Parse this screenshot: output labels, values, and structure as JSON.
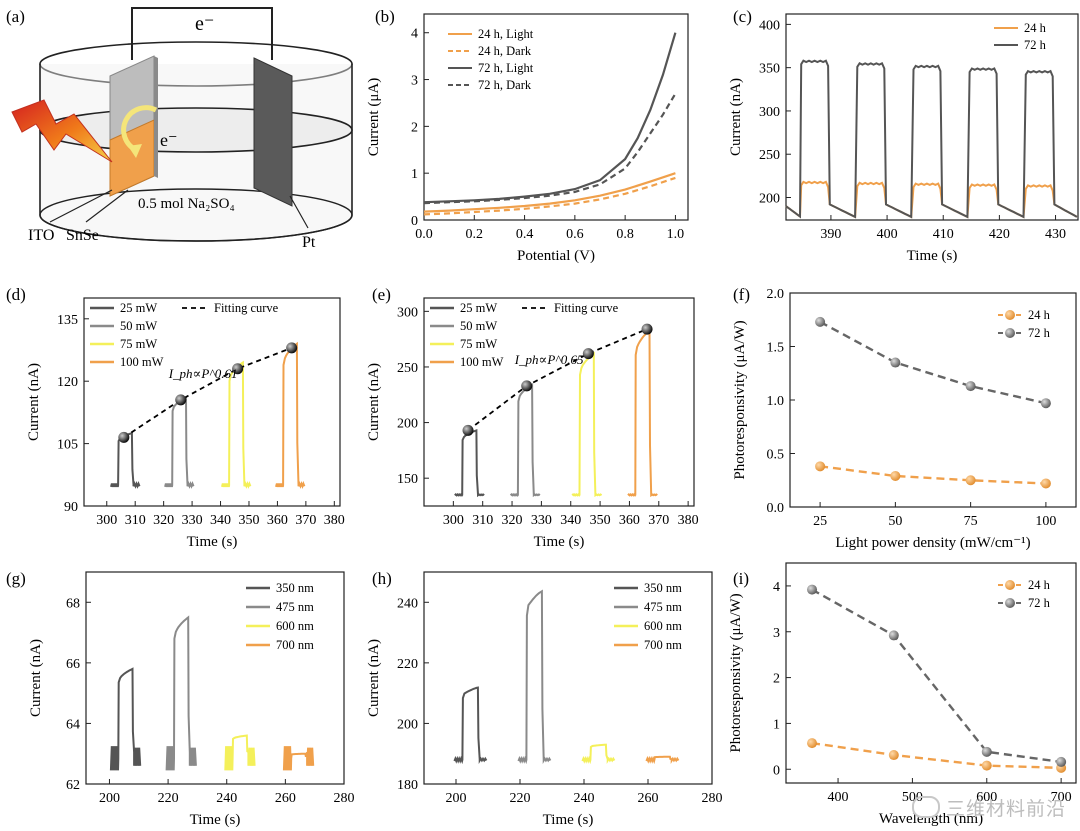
{
  "watermark": "三维材料前沿",
  "colors": {
    "orange": "#F0A04B",
    "dark": "#555555",
    "gray": "#8a8a8a",
    "yellow": "#F4F05A",
    "axis": "#222222"
  },
  "schematic": {
    "label": "(a)",
    "electron_top": "e⁻",
    "electron_mid": "e⁻",
    "electrolyte": "0.5 mol Na₂SO₄",
    "ito": "ITO",
    "snse": "SnSe",
    "pt": "Pt"
  },
  "chart_data": [
    {
      "id": "b",
      "label": "(b)",
      "type": "line",
      "xlabel": "Potential (V)",
      "ylabel": "Current (μA)",
      "xlim": [
        0,
        1.05
      ],
      "ylim": [
        0,
        4.4
      ],
      "xticks": [
        0.0,
        0.2,
        0.4,
        0.6,
        0.8,
        1.0
      ],
      "yticks": [
        0,
        1,
        2,
        3,
        4
      ],
      "xtick_labels": [
        "0.0",
        "0.2",
        "0.4",
        "0.6",
        "0.8",
        "1.0"
      ],
      "ytick_labels": [
        "0",
        "1",
        "2",
        "3",
        "4"
      ],
      "legend_position": "top-left",
      "series": [
        {
          "name": "24 h, Light",
          "color": "#F0A04B",
          "dash": false,
          "x": [
            0,
            0.1,
            0.2,
            0.3,
            0.4,
            0.5,
            0.6,
            0.7,
            0.8,
            0.9,
            1.0
          ],
          "y": [
            0.18,
            0.2,
            0.23,
            0.26,
            0.3,
            0.35,
            0.42,
            0.52,
            0.65,
            0.82,
            1.0
          ]
        },
        {
          "name": "24 h, Dark",
          "color": "#F0A04B",
          "dash": true,
          "x": [
            0,
            0.1,
            0.2,
            0.3,
            0.4,
            0.5,
            0.6,
            0.7,
            0.8,
            0.9,
            1.0
          ],
          "y": [
            0.12,
            0.14,
            0.17,
            0.2,
            0.24,
            0.29,
            0.35,
            0.44,
            0.56,
            0.72,
            0.9
          ]
        },
        {
          "name": "72 h, Light",
          "color": "#555555",
          "dash": false,
          "x": [
            0,
            0.1,
            0.2,
            0.3,
            0.4,
            0.5,
            0.6,
            0.7,
            0.8,
            0.85,
            0.9,
            0.95,
            1.0
          ],
          "y": [
            0.38,
            0.4,
            0.42,
            0.45,
            0.5,
            0.56,
            0.66,
            0.85,
            1.3,
            1.75,
            2.35,
            3.1,
            4.0
          ]
        },
        {
          "name": "72 h, Dark",
          "color": "#555555",
          "dash": true,
          "x": [
            0,
            0.1,
            0.2,
            0.3,
            0.4,
            0.5,
            0.6,
            0.7,
            0.8,
            0.85,
            0.9,
            0.95,
            1.0
          ],
          "y": [
            0.36,
            0.38,
            0.4,
            0.43,
            0.47,
            0.52,
            0.6,
            0.76,
            1.1,
            1.45,
            1.85,
            2.25,
            2.7
          ]
        }
      ]
    },
    {
      "id": "c",
      "label": "(c)",
      "type": "line",
      "xlabel": "Time (s)",
      "ylabel": "Current (nA)",
      "xlim": [
        382,
        434
      ],
      "ylim": [
        174,
        412
      ],
      "xticks": [
        390,
        400,
        410,
        420,
        430
      ],
      "yticks": [
        200,
        250,
        300,
        350,
        400
      ],
      "xtick_labels": [
        "390",
        "400",
        "410",
        "420",
        "430"
      ],
      "ytick_labels": [
        "200",
        "250",
        "300",
        "350",
        "400"
      ],
      "legend_position": "top-right",
      "pulses": {
        "starts": [
          384.5,
          394.5,
          404.5,
          414.5,
          424.5
        ],
        "width": 5,
        "period": 10,
        "decay_from": 190,
        "decay_to": 178
      },
      "series": [
        {
          "name": "24 h",
          "color": "#F0A04B",
          "on": [
            218,
            217,
            216,
            215,
            214
          ]
        },
        {
          "name": "72 h",
          "color": "#555555",
          "on": [
            358,
            355,
            352,
            349,
            346
          ]
        }
      ]
    },
    {
      "id": "d",
      "label": "(d)",
      "type": "line",
      "xlabel": "Time (s)",
      "ylabel": "Current (nA)",
      "xlim": [
        292,
        382
      ],
      "ylim": [
        90,
        140
      ],
      "xticks": [
        300,
        310,
        320,
        330,
        340,
        350,
        360,
        370,
        380
      ],
      "yticks": [
        90,
        105,
        120,
        135
      ],
      "xtick_labels": [
        "300",
        "310",
        "320",
        "330",
        "340",
        "350",
        "360",
        "370",
        "380"
      ],
      "ytick_labels": [
        "90",
        "105",
        "120",
        "135"
      ],
      "legend_position": "top-left",
      "fit_label": "Fitting curve",
      "fit_equation": "I_ph∝P^0.61",
      "baseline": 95,
      "series": [
        {
          "name": "25 mW",
          "color": "#555555",
          "start": 304,
          "width": 5,
          "peak": 107.5
        },
        {
          "name": "50 mW",
          "color": "#8a8a8a",
          "start": 323,
          "width": 5,
          "peak": 116
        },
        {
          "name": "75 mW",
          "color": "#F4F05A",
          "start": 343,
          "width": 5,
          "peak": 124.5
        },
        {
          "name": "100 mW",
          "color": "#F0A04B",
          "start": 362,
          "width": 5,
          "peak": 129
        }
      ],
      "fit": {
        "x": [
          306,
          326,
          346,
          365
        ],
        "y": [
          106.5,
          115.5,
          123,
          128
        ]
      }
    },
    {
      "id": "e",
      "label": "(e)",
      "type": "line",
      "xlabel": "Time (s)",
      "ylabel": "Current (nA)",
      "xlim": [
        290,
        382
      ],
      "ylim": [
        125,
        312
      ],
      "xticks": [
        300,
        310,
        320,
        330,
        340,
        350,
        360,
        370,
        380
      ],
      "yticks": [
        150,
        200,
        250,
        300
      ],
      "xtick_labels": [
        "300",
        "310",
        "320",
        "330",
        "340",
        "350",
        "360",
        "370",
        "380"
      ],
      "ytick_labels": [
        "150",
        "200",
        "250",
        "300"
      ],
      "legend_position": "top-left",
      "fit_label": "Fitting curve",
      "fit_equation": "I_ph∝P^0.65",
      "baseline": 135,
      "series": [
        {
          "name": "25 mW",
          "color": "#555555",
          "start": 303,
          "width": 5,
          "peak": 193
        },
        {
          "name": "50 mW",
          "color": "#8a8a8a",
          "start": 322,
          "width": 5,
          "peak": 234
        },
        {
          "name": "75 mW",
          "color": "#F4F05A",
          "start": 343,
          "width": 5,
          "peak": 262
        },
        {
          "name": "100 mW",
          "color": "#F0A04B",
          "start": 362,
          "width": 5,
          "peak": 283
        }
      ],
      "fit": {
        "x": [
          305,
          325,
          346,
          366
        ],
        "y": [
          193,
          233,
          262,
          284
        ]
      }
    },
    {
      "id": "f",
      "label": "(f)",
      "type": "scatter",
      "xlabel": "Light power density (mW/cm⁻¹)",
      "ylabel": "Photoresponsivity (μA/W)",
      "xlim": [
        15,
        110
      ],
      "ylim": [
        0,
        2.0
      ],
      "xticks": [
        25,
        50,
        75,
        100
      ],
      "yticks": [
        0,
        0.5,
        1.0,
        1.5,
        2.0
      ],
      "xtick_labels": [
        "25",
        "50",
        "75",
        "100"
      ],
      "ytick_labels": [
        "0.0",
        "0.5",
        "1.0",
        "1.5",
        "2.0"
      ],
      "legend_position": "top-right",
      "series": [
        {
          "name": "24 h",
          "color": "#F0A04B",
          "x": [
            25,
            50,
            75,
            100
          ],
          "y": [
            0.38,
            0.29,
            0.25,
            0.22
          ]
        },
        {
          "name": "72 h",
          "color": "#666666",
          "x": [
            25,
            50,
            75,
            100
          ],
          "y": [
            1.73,
            1.35,
            1.13,
            0.97
          ]
        }
      ]
    },
    {
      "id": "g",
      "label": "(g)",
      "type": "line",
      "xlabel": "Time (s)",
      "ylabel": "Current (nA)",
      "xlim": [
        192,
        280
      ],
      "ylim": [
        62,
        69
      ],
      "xticks": [
        200,
        220,
        240,
        260,
        280
      ],
      "yticks": [
        62,
        64,
        66,
        68
      ],
      "xtick_labels": [
        "200",
        "220",
        "240",
        "260",
        "280"
      ],
      "ytick_labels": [
        "62",
        "64",
        "66",
        "68"
      ],
      "legend_position": "top-right",
      "baseline": 62.85,
      "series": [
        {
          "name": "350 nm",
          "color": "#555555",
          "start": 203,
          "width": 5,
          "peak": 65.8
        },
        {
          "name": "475 nm",
          "color": "#8a8a8a",
          "start": 222,
          "width": 5,
          "peak": 67.5
        },
        {
          "name": "600 nm",
          "color": "#F4F05A",
          "start": 242,
          "width": 5,
          "peak": 63.6
        },
        {
          "name": "700 nm",
          "color": "#F0A04B",
          "start": 262,
          "width": 5,
          "peak": 63.0
        }
      ]
    },
    {
      "id": "h",
      "label": "(h)",
      "type": "line",
      "xlabel": "Time (s)",
      "ylabel": "Current (nA)",
      "xlim": [
        190,
        280
      ],
      "ylim": [
        180,
        250
      ],
      "xticks": [
        200,
        220,
        240,
        260,
        280
      ],
      "yticks": [
        180,
        200,
        220,
        240
      ],
      "xtick_labels": [
        "200",
        "220",
        "240",
        "260",
        "280"
      ],
      "ytick_labels": [
        "180",
        "200",
        "220",
        "240"
      ],
      "legend_position": "top-right",
      "baseline": 188,
      "series": [
        {
          "name": "350 nm",
          "color": "#555555",
          "start": 202,
          "width": 5,
          "peak": 212
        },
        {
          "name": "475 nm",
          "color": "#8a8a8a",
          "start": 222,
          "width": 5,
          "peak": 244
        },
        {
          "name": "600 nm",
          "color": "#F4F05A",
          "start": 242,
          "width": 5,
          "peak": 193
        },
        {
          "name": "700 nm",
          "color": "#F0A04B",
          "start": 262,
          "width": 5,
          "peak": 189
        }
      ]
    },
    {
      "id": "i",
      "label": "(i)",
      "type": "scatter",
      "xlabel": "Wavelength (nm)",
      "ylabel": "Photoresponsivity (μA/W)",
      "xlim": [
        330,
        720
      ],
      "ylim": [
        -0.3,
        4.5
      ],
      "xticks": [
        400,
        500,
        600,
        700
      ],
      "yticks": [
        0,
        1,
        2,
        3,
        4
      ],
      "xtick_labels": [
        "400",
        "500",
        "600",
        "700"
      ],
      "ytick_labels": [
        "0",
        "1",
        "2",
        "3",
        "4"
      ],
      "legend_position": "top-right",
      "series": [
        {
          "name": "24 h",
          "color": "#F0A04B",
          "x": [
            365,
            475,
            600,
            700
          ],
          "y": [
            0.57,
            0.31,
            0.08,
            0.03
          ]
        },
        {
          "name": "72 h",
          "color": "#666666",
          "x": [
            365,
            475,
            600,
            700
          ],
          "y": [
            3.92,
            2.92,
            0.38,
            0.16
          ]
        }
      ]
    }
  ]
}
